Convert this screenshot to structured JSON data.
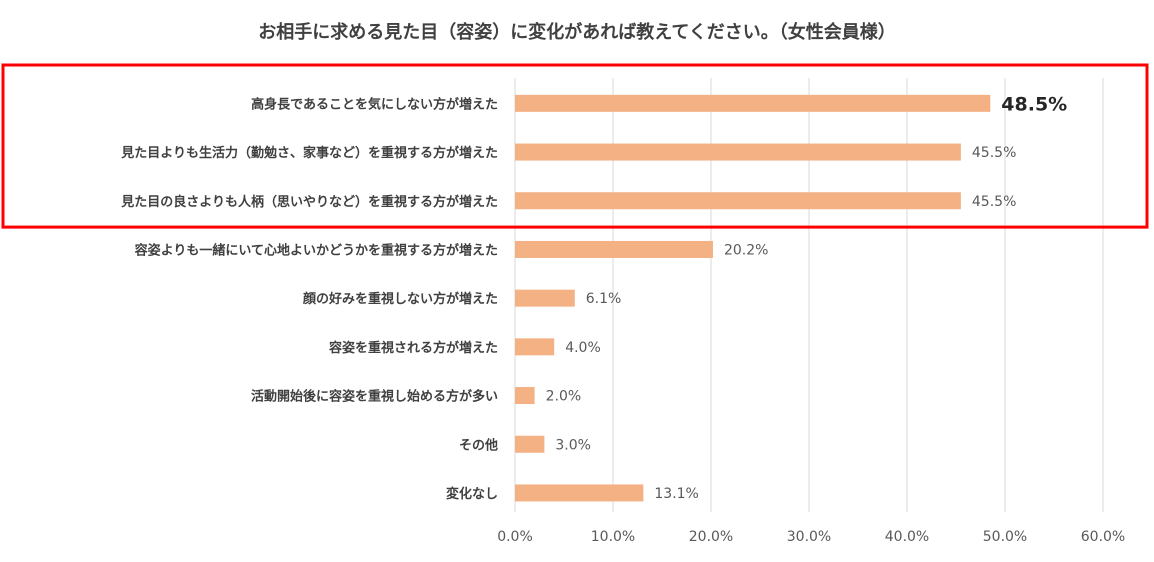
{
  "chart_data": {
    "type": "bar",
    "orientation": "horizontal",
    "title": "お相手に求める見た目（容姿）に変化があれば教えてください。（女性会員様）",
    "categories": [
      "高身長であることを気にしない方が増えた",
      "見た目よりも生活力（勤勉さ、家事など）を重視する方が増えた",
      "見た目の良さよりも人柄（思いやりなど）を重視する方が増えた",
      "容姿よりも一緒にいて心地よいかどうかを重視する方が増えた",
      "顔の好みを重視しない方が増えた",
      "容姿を重視される方が増えた",
      "活動開始後に容姿を重視し始める方が多い",
      "その他",
      "変化なし"
    ],
    "values": [
      48.5,
      45.5,
      45.5,
      20.2,
      6.1,
      4.0,
      2.0,
      3.0,
      13.1
    ],
    "value_labels": [
      "48.5%",
      "45.5%",
      "45.5%",
      "20.2%",
      "6.1%",
      "4.0%",
      "2.0%",
      "3.0%",
      "13.1%"
    ],
    "xlim": [
      0,
      60
    ],
    "x_ticks": [
      0,
      10,
      20,
      30,
      40,
      50,
      60
    ],
    "x_tick_labels": [
      "0.0%",
      "10.0%",
      "20.0%",
      "30.0%",
      "40.0%",
      "50.0%",
      "60.0%"
    ],
    "grid": true,
    "legend": "none",
    "bar_color": "#f4b183",
    "highlight_box_color": "#ff0000",
    "highlighted_categories": [
      0,
      1,
      2
    ],
    "emphasized_value_index": 0
  }
}
